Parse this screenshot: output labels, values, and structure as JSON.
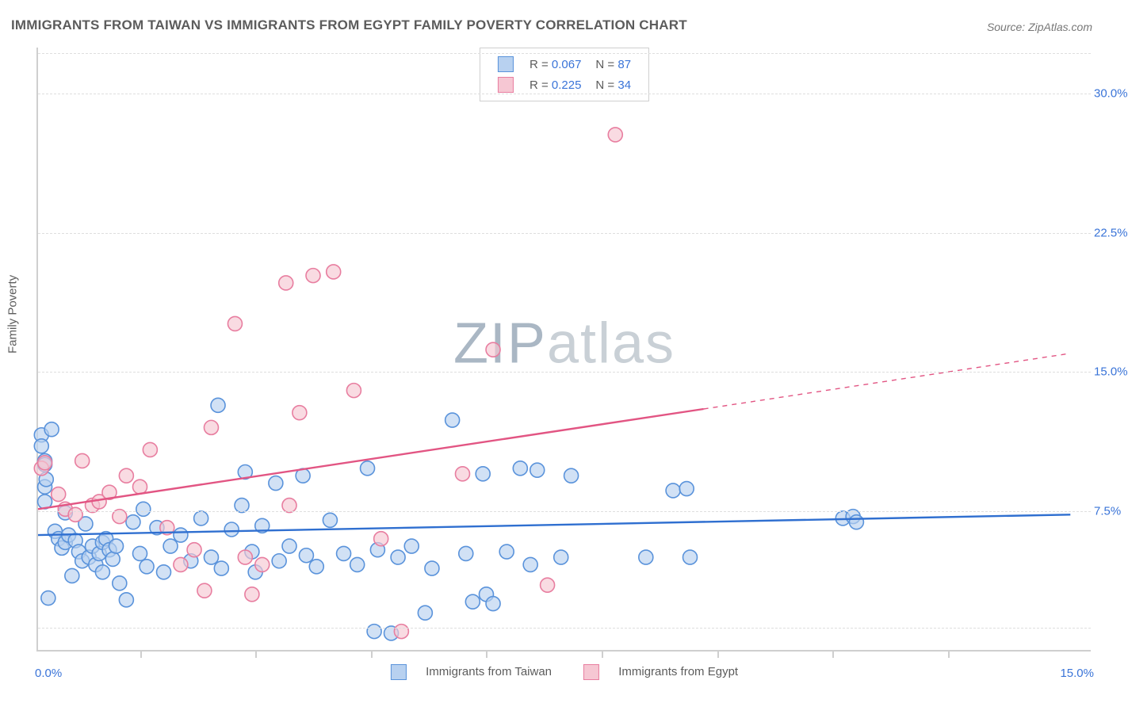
{
  "title": "IMMIGRANTS FROM TAIWAN VS IMMIGRANTS FROM EGYPT FAMILY POVERTY CORRELATION CHART",
  "source": "Source: ZipAtlas.com",
  "watermark_left": "ZIP",
  "watermark_right": "atlas",
  "ylabel": "Family Poverty",
  "chart": {
    "type": "scatter",
    "xlim": [
      0,
      15.5
    ],
    "ylim": [
      0,
      32.5
    ],
    "xtick_positions": [
      1.5,
      3.2,
      4.9,
      6.6,
      8.3,
      10.0,
      11.7,
      13.4
    ],
    "y_gridlines": [
      1.2,
      7.5,
      15.0,
      22.5,
      30.0,
      32.2
    ],
    "y_right_labels": [
      {
        "v": 7.5,
        "t": "7.5%"
      },
      {
        "v": 15.0,
        "t": "15.0%"
      },
      {
        "v": 22.5,
        "t": "22.5%"
      },
      {
        "v": 30.0,
        "t": "30.0%"
      }
    ],
    "x_left_label": "0.0%",
    "x_right_label": "15.0%",
    "grid_color": "#dedede",
    "axis_color": "#cfcfcf",
    "background_color": "#ffffff",
    "label_color": "#3a74d8",
    "marker_radius": 9,
    "marker_stroke_width": 1.6,
    "trend_line_width": 2.4,
    "series": [
      {
        "name": "Immigrants from Taiwan",
        "fill": "#b8d1f0",
        "stroke": "#5a93db",
        "line_color": "#2f6fd0",
        "R": "0.067",
        "N": "87",
        "trend": {
          "x1": 0.0,
          "y1": 6.2,
          "x2": 15.2,
          "y2": 7.3,
          "dash_from_x": 15.5
        },
        "points": [
          [
            0.05,
            11.6
          ],
          [
            0.05,
            11.0
          ],
          [
            0.1,
            10.2
          ],
          [
            0.1,
            10.0
          ],
          [
            0.1,
            8.8
          ],
          [
            0.1,
            8.0
          ],
          [
            0.12,
            9.2
          ],
          [
            0.15,
            2.8
          ],
          [
            0.25,
            6.4
          ],
          [
            0.3,
            6.0
          ],
          [
            0.35,
            5.5
          ],
          [
            0.4,
            7.4
          ],
          [
            0.4,
            5.8
          ],
          [
            0.45,
            6.2
          ],
          [
            0.5,
            4.0
          ],
          [
            0.55,
            5.9
          ],
          [
            0.6,
            5.3
          ],
          [
            0.65,
            4.8
          ],
          [
            0.7,
            6.8
          ],
          [
            0.75,
            5.0
          ],
          [
            0.8,
            5.6
          ],
          [
            0.85,
            4.6
          ],
          [
            0.9,
            5.2
          ],
          [
            0.95,
            5.8
          ],
          [
            0.95,
            4.2
          ],
          [
            1.0,
            6.0
          ],
          [
            1.05,
            5.4
          ],
          [
            1.1,
            4.9
          ],
          [
            1.15,
            5.6
          ],
          [
            1.2,
            3.6
          ],
          [
            1.3,
            2.7
          ],
          [
            1.4,
            6.9
          ],
          [
            1.5,
            5.2
          ],
          [
            1.55,
            7.6
          ],
          [
            1.6,
            4.5
          ],
          [
            1.75,
            6.6
          ],
          [
            1.85,
            4.2
          ],
          [
            1.95,
            5.6
          ],
          [
            2.1,
            6.2
          ],
          [
            2.25,
            4.8
          ],
          [
            2.4,
            7.1
          ],
          [
            2.55,
            5.0
          ],
          [
            2.65,
            13.2
          ],
          [
            2.7,
            4.4
          ],
          [
            2.85,
            6.5
          ],
          [
            3.0,
            7.8
          ],
          [
            3.05,
            9.6
          ],
          [
            3.15,
            5.3
          ],
          [
            3.2,
            4.2
          ],
          [
            3.3,
            6.7
          ],
          [
            3.5,
            9.0
          ],
          [
            3.55,
            4.8
          ],
          [
            3.7,
            5.6
          ],
          [
            3.9,
            9.4
          ],
          [
            3.95,
            5.1
          ],
          [
            4.1,
            4.5
          ],
          [
            4.3,
            7.0
          ],
          [
            4.5,
            5.2
          ],
          [
            4.7,
            4.6
          ],
          [
            4.85,
            9.8
          ],
          [
            4.95,
            1.0
          ],
          [
            5.0,
            5.4
          ],
          [
            5.2,
            0.9
          ],
          [
            5.3,
            5.0
          ],
          [
            5.5,
            5.6
          ],
          [
            5.7,
            2.0
          ],
          [
            5.8,
            4.4
          ],
          [
            6.1,
            12.4
          ],
          [
            6.3,
            5.2
          ],
          [
            6.4,
            2.6
          ],
          [
            6.55,
            9.5
          ],
          [
            6.6,
            3.0
          ],
          [
            6.7,
            2.5
          ],
          [
            6.9,
            5.3
          ],
          [
            7.1,
            9.8
          ],
          [
            7.25,
            4.6
          ],
          [
            7.35,
            9.7
          ],
          [
            7.7,
            5.0
          ],
          [
            7.85,
            9.4
          ],
          [
            9.35,
            8.6
          ],
          [
            9.55,
            8.7
          ],
          [
            9.6,
            5.0
          ],
          [
            11.85,
            7.1
          ],
          [
            12.0,
            7.2
          ],
          [
            12.05,
            6.9
          ],
          [
            8.95,
            5.0
          ],
          [
            0.2,
            11.9
          ]
        ]
      },
      {
        "name": "Immigrants from Egypt",
        "fill": "#f6c7d3",
        "stroke": "#e87ea0",
        "line_color": "#e25583",
        "R": "0.225",
        "N": "34",
        "trend": {
          "x1": 0.0,
          "y1": 7.6,
          "x2": 9.8,
          "y2": 13.0,
          "dash_from_x": 9.8,
          "dash_x2": 15.2,
          "dash_y2": 16.0
        },
        "points": [
          [
            0.05,
            9.8
          ],
          [
            0.1,
            10.1
          ],
          [
            0.3,
            8.4
          ],
          [
            0.4,
            7.6
          ],
          [
            0.55,
            7.3
          ],
          [
            0.65,
            10.2
          ],
          [
            0.8,
            7.8
          ],
          [
            0.9,
            8.0
          ],
          [
            1.05,
            8.5
          ],
          [
            1.2,
            7.2
          ],
          [
            1.3,
            9.4
          ],
          [
            1.5,
            8.8
          ],
          [
            1.65,
            10.8
          ],
          [
            1.9,
            6.6
          ],
          [
            2.1,
            4.6
          ],
          [
            2.3,
            5.4
          ],
          [
            2.45,
            3.2
          ],
          [
            2.55,
            12.0
          ],
          [
            2.9,
            17.6
          ],
          [
            3.05,
            5.0
          ],
          [
            3.15,
            3.0
          ],
          [
            3.3,
            4.6
          ],
          [
            3.65,
            19.8
          ],
          [
            3.7,
            7.8
          ],
          [
            3.85,
            12.8
          ],
          [
            4.05,
            20.2
          ],
          [
            4.35,
            20.4
          ],
          [
            4.65,
            14.0
          ],
          [
            5.05,
            6.0
          ],
          [
            5.35,
            1.0
          ],
          [
            6.25,
            9.5
          ],
          [
            6.7,
            16.2
          ],
          [
            7.5,
            3.5
          ],
          [
            8.5,
            27.8
          ]
        ]
      }
    ]
  },
  "legend_top": {
    "rows": [
      {
        "swatch_fill": "#b8d1f0",
        "swatch_stroke": "#5a93db",
        "R": "0.067",
        "N": "87"
      },
      {
        "swatch_fill": "#f6c7d3",
        "swatch_stroke": "#e87ea0",
        "R": "0.225",
        "N": "34"
      }
    ],
    "labels": {
      "R": "R = ",
      "N": "N = "
    }
  },
  "legend_bottom": {
    "items": [
      {
        "swatch_fill": "#b8d1f0",
        "swatch_stroke": "#5a93db",
        "label": "Immigrants from Taiwan"
      },
      {
        "swatch_fill": "#f6c7d3",
        "swatch_stroke": "#e87ea0",
        "label": "Immigrants from Egypt"
      }
    ]
  }
}
